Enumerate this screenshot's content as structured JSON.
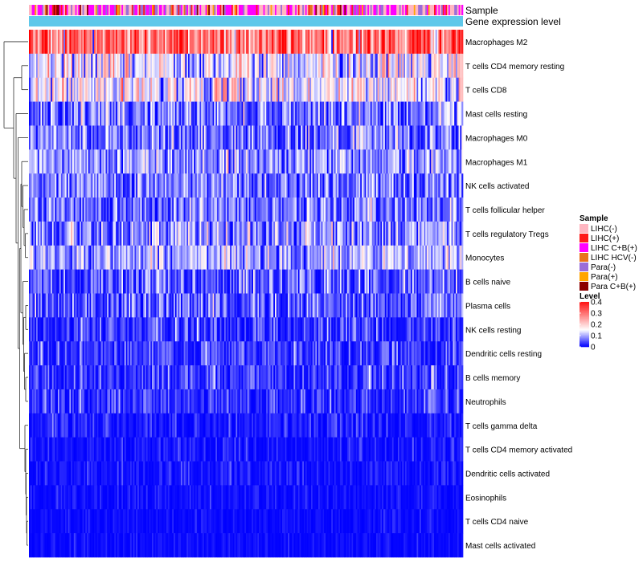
{
  "chart_data": {
    "type": "heatmap",
    "title": "",
    "n_columns": 300,
    "rows": [
      {
        "label": "Macrophages M2",
        "mean": 0.3,
        "sd": 0.09
      },
      {
        "label": "T cells CD4 memory resting",
        "mean": 0.14,
        "sd": 0.07
      },
      {
        "label": "T cells CD8",
        "mean": 0.15,
        "sd": 0.07
      },
      {
        "label": "Mast cells resting",
        "mean": 0.07,
        "sd": 0.05
      },
      {
        "label": "Macrophages M0",
        "mean": 0.06,
        "sd": 0.06
      },
      {
        "label": "Macrophages M1",
        "mean": 0.09,
        "sd": 0.05
      },
      {
        "label": "NK cells activated",
        "mean": 0.07,
        "sd": 0.05
      },
      {
        "label": "T cells follicular helper",
        "mean": 0.07,
        "sd": 0.05
      },
      {
        "label": "T cells regulatory  Tregs",
        "mean": 0.08,
        "sd": 0.06
      },
      {
        "label": "Monocytes",
        "mean": 0.1,
        "sd": 0.05
      },
      {
        "label": "B cells naive",
        "mean": 0.05,
        "sd": 0.05
      },
      {
        "label": "Plasma cells",
        "mean": 0.05,
        "sd": 0.05
      },
      {
        "label": "NK cells resting",
        "mean": 0.03,
        "sd": 0.04
      },
      {
        "label": "Dendritic cells resting",
        "mean": 0.03,
        "sd": 0.04
      },
      {
        "label": "B cells memory",
        "mean": 0.03,
        "sd": 0.04
      },
      {
        "label": "Neutrophils",
        "mean": 0.025,
        "sd": 0.035
      },
      {
        "label": "T cells gamma delta",
        "mean": 0.012,
        "sd": 0.025
      },
      {
        "label": "T cells CD4 memory activated",
        "mean": 0.008,
        "sd": 0.02
      },
      {
        "label": "Dendritic cells activated",
        "mean": 0.006,
        "sd": 0.02
      },
      {
        "label": "Eosinophils",
        "mean": 0.004,
        "sd": 0.015
      },
      {
        "label": "T cells CD4 naive",
        "mean": 0.003,
        "sd": 0.012
      },
      {
        "label": "Mast cells activated",
        "mean": 0.003,
        "sd": 0.012
      }
    ],
    "annotations": [
      {
        "label": "Sample"
      },
      {
        "label": "Gene expression level"
      }
    ],
    "sample_groups": [
      {
        "name": "LIHC(-)",
        "color": "#ffb6c1",
        "weight": 0.36
      },
      {
        "name": "LIHC(+)",
        "color": "#ff1a1a",
        "weight": 0.07
      },
      {
        "name": "LIHC C+B(+)",
        "color": "#ff00ff",
        "weight": 0.3
      },
      {
        "name": "LIHC HCV(-)",
        "color": "#e8731c",
        "weight": 0.02
      },
      {
        "name": "Para(-)",
        "color": "#9b6dd8",
        "weight": 0.16
      },
      {
        "name": "Para(+)",
        "color": "#ffa500",
        "weight": 0.04
      },
      {
        "name": "Para C+B(+)",
        "color": "#8b0000",
        "weight": 0.05
      }
    ],
    "level_annotation_color": "#5fc8ea",
    "legend": {
      "sample_title": "Sample",
      "level_title": "Level",
      "level_ticks": [
        "0.4",
        "0.3",
        "0.2",
        "0.1",
        "0"
      ],
      "level_tick_values": [
        0.4,
        0.3,
        0.2,
        0.1,
        0
      ],
      "color_low": "#0000ff",
      "color_mid": "#ffffff",
      "color_high": "#ff0000",
      "value_min": 0,
      "value_mid": 0.15,
      "value_max": 0.42
    }
  }
}
